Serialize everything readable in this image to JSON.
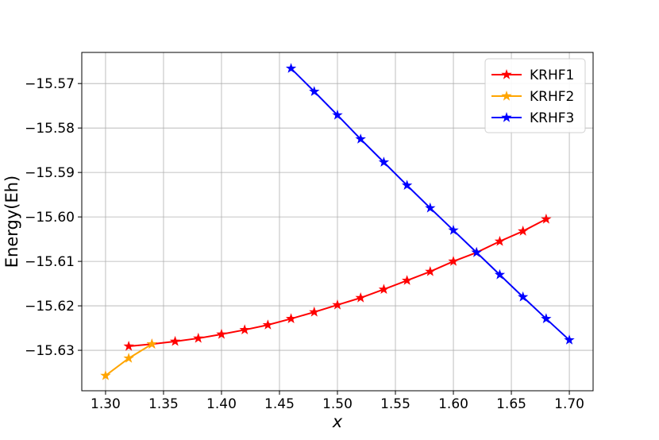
{
  "chart_data": {
    "type": "line",
    "x_label": "x",
    "y_label": "Energy(Eh)",
    "xlim": [
      1.2795,
      1.7205
    ],
    "ylim": [
      -15.6391,
      -15.563
    ],
    "xticks": [
      {
        "value": 1.3,
        "label": "1.30"
      },
      {
        "value": 1.35,
        "label": "1.35"
      },
      {
        "value": 1.4,
        "label": "1.40"
      },
      {
        "value": 1.45,
        "label": "1.45"
      },
      {
        "value": 1.5,
        "label": "1.50"
      },
      {
        "value": 1.55,
        "label": "1.55"
      },
      {
        "value": 1.6,
        "label": "1.60"
      },
      {
        "value": 1.65,
        "label": "1.65"
      },
      {
        "value": 1.7,
        "label": "1.70"
      }
    ],
    "yticks": [
      {
        "value": -15.57,
        "label": "−15.57"
      },
      {
        "value": -15.58,
        "label": "−15.58"
      },
      {
        "value": -15.59,
        "label": "−15.59"
      },
      {
        "value": -15.6,
        "label": "−15.60"
      },
      {
        "value": -15.61,
        "label": "−15.61"
      },
      {
        "value": -15.62,
        "label": "−15.62"
      },
      {
        "value": -15.63,
        "label": "−15.63"
      }
    ],
    "grid": true,
    "legend": "upper right",
    "series": [
      {
        "name": "KRHF1",
        "color": "#ff0000",
        "x": [
          1.32,
          1.34,
          1.36,
          1.38,
          1.4,
          1.42,
          1.44,
          1.46,
          1.48,
          1.5,
          1.52,
          1.54,
          1.56,
          1.58,
          1.6,
          1.62,
          1.64,
          1.66,
          1.68
        ],
        "values": [
          -15.6291,
          -15.6286,
          -15.628,
          -15.6273,
          -15.6264,
          -15.6254,
          -15.6243,
          -15.6229,
          -15.6214,
          -15.6198,
          -15.6182,
          -15.6163,
          -15.6143,
          -15.6123,
          -15.61,
          -15.608,
          -15.6055,
          -15.6032,
          -15.6005
        ]
      },
      {
        "name": "KRHF2",
        "color": "#ffa500",
        "x": [
          1.3,
          1.32,
          1.34
        ],
        "values": [
          -15.6357,
          -15.6318,
          -15.6286
        ]
      },
      {
        "name": "KRHF3",
        "color": "#0000ff",
        "x": [
          1.46,
          1.48,
          1.5,
          1.52,
          1.54,
          1.56,
          1.58,
          1.6,
          1.62,
          1.64,
          1.66,
          1.68,
          1.7
        ],
        "values": [
          -15.5666,
          -15.5718,
          -15.5771,
          -15.5825,
          -15.5877,
          -15.5929,
          -15.598,
          -15.603,
          -15.608,
          -15.613,
          -15.618,
          -15.6229,
          -15.6277
        ]
      }
    ]
  }
}
